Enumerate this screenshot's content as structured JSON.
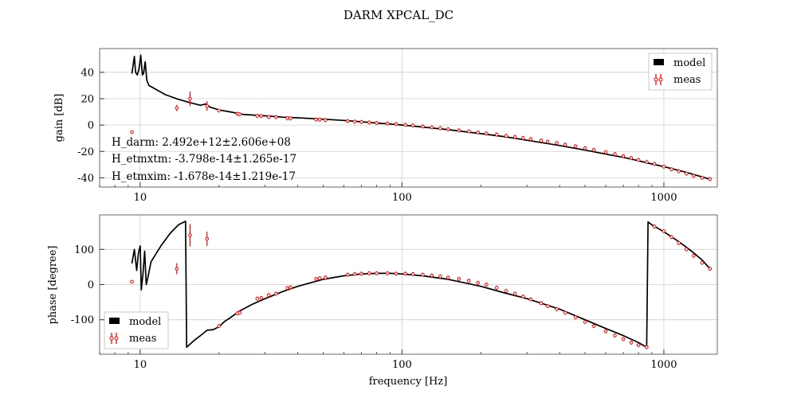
{
  "title": "DARM XPCAL_DC",
  "colors": {
    "model": "#000000",
    "meas": "#ff0000",
    "grid": "#cfcfcf"
  },
  "chart_data": [
    {
      "type": "line",
      "panel": "gain",
      "xscale": "log",
      "xlim": [
        7,
        1600
      ],
      "ylim": [
        -47,
        58
      ],
      "xlabel": "",
      "ylabel": "gain [dB]",
      "xticks": [
        {
          "value": 10,
          "label": "10"
        },
        {
          "value": 100,
          "label": "100"
        },
        {
          "value": 1000,
          "label": "1000"
        }
      ],
      "yticks": [
        -40,
        -20,
        0,
        20,
        40
      ],
      "grid": true,
      "legend": {
        "position": "top-right",
        "entries": [
          "model",
          "meas"
        ]
      },
      "annotations": [
        "H_darm: 2.492e+12±2.606e+08",
        "H_etmxtm: -3.798e-14±1.265e-17",
        "H_etmxim: -1.678e-14±1.219e-17"
      ],
      "series": [
        {
          "name": "model",
          "style": "line",
          "x": [
            9.3,
            9.5,
            9.6,
            9.75,
            9.9,
            10.05,
            10.2,
            10.3,
            10.45,
            10.6,
            10.8,
            11.5,
            12.5,
            14,
            15.5,
            17,
            17.8,
            18.5,
            20,
            22,
            25,
            30,
            35,
            40,
            50,
            60,
            70,
            80,
            90,
            100,
            120,
            150,
            200,
            250,
            300,
            400,
            500,
            600,
            700,
            800,
            900,
            1000,
            1200,
            1500
          ],
          "y": [
            39,
            52,
            40,
            38,
            43,
            53,
            38,
            39,
            48,
            34,
            30,
            27,
            23,
            19.5,
            17,
            15,
            16,
            13.5,
            11.5,
            10,
            8,
            7,
            6,
            5.5,
            4.5,
            3.5,
            2.5,
            1.5,
            0.8,
            0,
            -1.5,
            -3.5,
            -6.5,
            -9,
            -11.5,
            -15.5,
            -19,
            -22,
            -24.5,
            -27,
            -29.5,
            -31.5,
            -35.5,
            -41
          ]
        },
        {
          "name": "meas",
          "style": "errorbar",
          "x": [
            9.3,
            13.8,
            15.5,
            18,
            20,
            23.5,
            24,
            28,
            29,
            31,
            33,
            36.5,
            37.5,
            47,
            48.5,
            51,
            62,
            66,
            70,
            75,
            80,
            88,
            95,
            103,
            110,
            120,
            130,
            140,
            150,
            165,
            180,
            195,
            210,
            230,
            250,
            270,
            290,
            310,
            340,
            360,
            390,
            420,
            460,
            500,
            540,
            600,
            650,
            700,
            750,
            800,
            860,
            920,
            1000,
            1070,
            1140,
            1220,
            1300,
            1400,
            1500
          ],
          "y": [
            -5.5,
            13,
            20,
            14.5,
            11,
            8.5,
            8.2,
            7,
            6.8,
            6.2,
            6,
            5.2,
            5.1,
            4.2,
            4.1,
            3.8,
            3,
            2.6,
            2.3,
            2,
            1.6,
            1.2,
            0.8,
            0.2,
            -0.3,
            -1,
            -1.8,
            -2.4,
            -3.2,
            -4,
            -4.8,
            -5.6,
            -6.4,
            -7.2,
            -8.2,
            -9,
            -9.8,
            -10.6,
            -11.8,
            -12.6,
            -13.6,
            -14.8,
            -16,
            -17.5,
            -18.8,
            -20.5,
            -22,
            -23.5,
            -25,
            -26.5,
            -28,
            -29.5,
            -31.5,
            -33.5,
            -35,
            -36.8,
            -38.5,
            -40,
            -41
          ]
        }
      ]
    },
    {
      "type": "line",
      "panel": "phase",
      "xscale": "log",
      "xlim": [
        7,
        1600
      ],
      "ylim": [
        -198,
        198
      ],
      "xlabel": "frequency [Hz]",
      "ylabel": "phase [degree]",
      "xticks": [
        {
          "value": 10,
          "label": "10"
        },
        {
          "value": 100,
          "label": "100"
        },
        {
          "value": 1000,
          "label": "1000"
        }
      ],
      "yticks": [
        -100,
        0,
        100
      ],
      "grid": true,
      "legend": {
        "position": "bottom-left",
        "entries": [
          "model",
          "meas"
        ]
      },
      "series": [
        {
          "name": "model",
          "style": "line",
          "x": [
            9.3,
            9.5,
            9.7,
            9.85,
            10.0,
            10.1,
            10.25,
            10.4,
            10.55,
            10.7,
            11,
            12,
            13,
            14,
            14.9,
            15.05,
            16,
            17,
            18,
            19,
            20,
            21,
            22,
            24,
            27,
            30,
            35,
            40,
            50,
            60,
            70,
            80,
            90,
            100,
            120,
            150,
            200,
            250,
            300,
            400,
            500,
            600,
            700,
            800,
            860,
            870,
            900,
            1000,
            1100,
            1200,
            1300,
            1400,
            1500
          ],
          "y": [
            60,
            100,
            40,
            90,
            110,
            -15,
            30,
            95,
            0,
            20,
            65,
            110,
            145,
            170,
            180,
            -178,
            -160,
            -145,
            -130,
            -128,
            -120,
            -105,
            -95,
            -75,
            -55,
            -40,
            -20,
            -5,
            15,
            25,
            30,
            32,
            32,
            30,
            25,
            15,
            -5,
            -25,
            -40,
            -70,
            -100,
            -125,
            -145,
            -165,
            -178,
            178,
            170,
            150,
            130,
            110,
            90,
            70,
            45
          ]
        },
        {
          "name": "meas",
          "style": "errorbar",
          "x": [
            9.3,
            13.8,
            15.5,
            18,
            20,
            23.5,
            24,
            28,
            29,
            31,
            33,
            36.5,
            37.5,
            47,
            48.5,
            51,
            62,
            66,
            70,
            75,
            80,
            88,
            95,
            103,
            110,
            120,
            130,
            140,
            150,
            165,
            180,
            195,
            210,
            230,
            250,
            270,
            290,
            310,
            340,
            360,
            390,
            420,
            460,
            500,
            540,
            600,
            650,
            700,
            750,
            800,
            860,
            920,
            1000,
            1070,
            1140,
            1220,
            1300,
            1400,
            1500
          ],
          "y": [
            8,
            45,
            140,
            130,
            -118,
            -82,
            -80,
            -40,
            -38,
            -30,
            -26,
            -10,
            -8,
            16,
            18,
            20,
            28,
            30,
            31,
            32,
            32,
            32,
            31,
            31,
            30,
            28,
            26,
            23,
            20,
            16,
            11,
            5,
            0,
            -9,
            -18,
            -26,
            -34,
            -42,
            -53,
            -61,
            -70,
            -80,
            -93,
            -106,
            -118,
            -133,
            -145,
            -155,
            -165,
            -172,
            -178,
            165,
            152,
            135,
            118,
            100,
            82,
            62,
            45
          ]
        }
      ]
    }
  ]
}
